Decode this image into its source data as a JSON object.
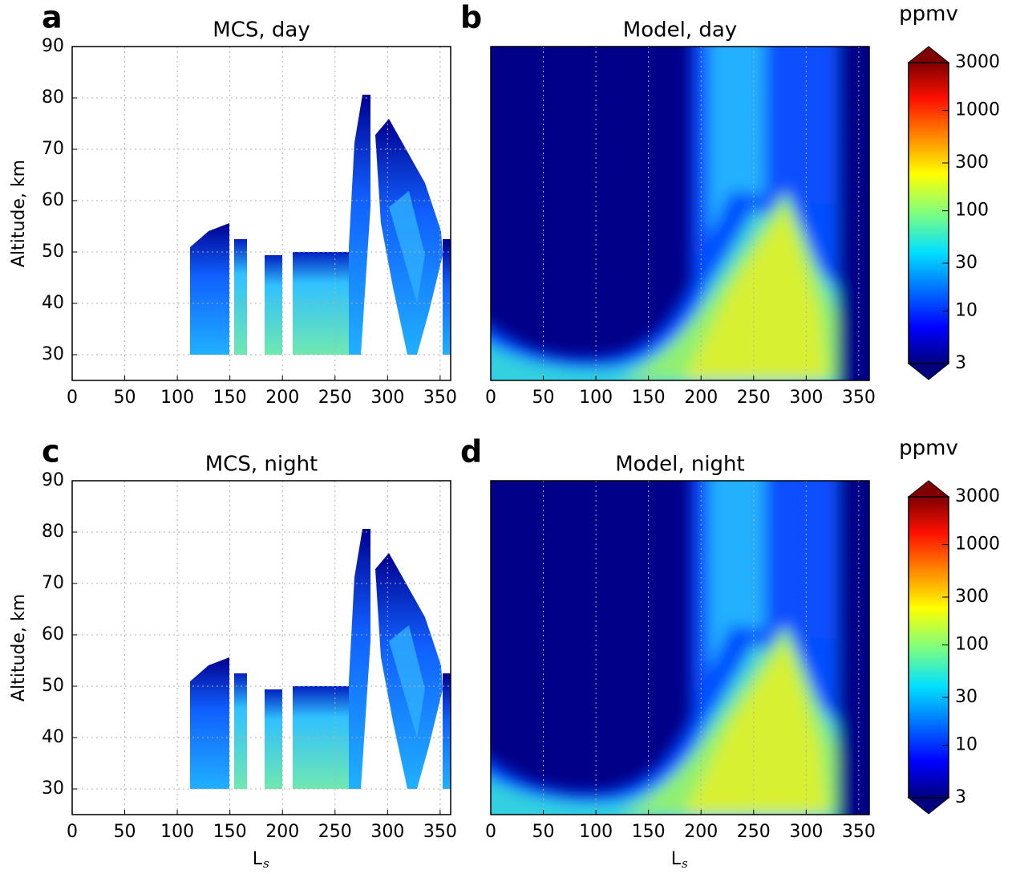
{
  "chart_data": [
    {
      "type": "heatmap",
      "panel_label": "a",
      "title": "MCS, day",
      "ylabel": "Altitude, km",
      "xlim": [
        0,
        360
      ],
      "ylim": [
        25,
        90
      ],
      "xticks": [
        0,
        50,
        100,
        150,
        200,
        250,
        300,
        350
      ],
      "yticks": [
        30,
        40,
        50,
        60,
        70,
        80,
        90
      ],
      "grid": true
    },
    {
      "type": "heatmap",
      "panel_label": "b",
      "title": "Model, day",
      "xlim": [
        0,
        360
      ],
      "ylim": [
        25,
        90
      ],
      "xticks": [
        0,
        50,
        100,
        150,
        200,
        250,
        300,
        350
      ],
      "grid": true
    },
    {
      "type": "heatmap",
      "panel_label": "c",
      "title": "MCS, night",
      "ylabel": "Altitude, km",
      "xlabel": "L",
      "xlabel_sub": "s",
      "xlim": [
        0,
        360
      ],
      "ylim": [
        25,
        90
      ],
      "xticks": [
        0,
        50,
        100,
        150,
        200,
        250,
        300,
        350
      ],
      "yticks": [
        30,
        40,
        50,
        60,
        70,
        80,
        90
      ],
      "grid": true
    },
    {
      "type": "heatmap",
      "panel_label": "d",
      "title": "Model, night",
      "xlabel": "L",
      "xlabel_sub": "s",
      "xlim": [
        0,
        360
      ],
      "ylim": [
        25,
        90
      ],
      "xticks": [
        0,
        50,
        100,
        150,
        200,
        250,
        300,
        350
      ],
      "grid": true
    },
    {
      "type": "colorbar",
      "label": "ppmv",
      "log": true,
      "ylim": [
        3,
        3000
      ],
      "yticks": [
        3,
        10,
        30,
        100,
        300,
        1000,
        3000
      ]
    },
    {
      "type": "colorbar",
      "label": "ppmv",
      "log": true,
      "ylim": [
        3,
        3000
      ],
      "yticks": [
        3,
        10,
        30,
        100,
        300,
        1000,
        3000
      ]
    }
  ]
}
